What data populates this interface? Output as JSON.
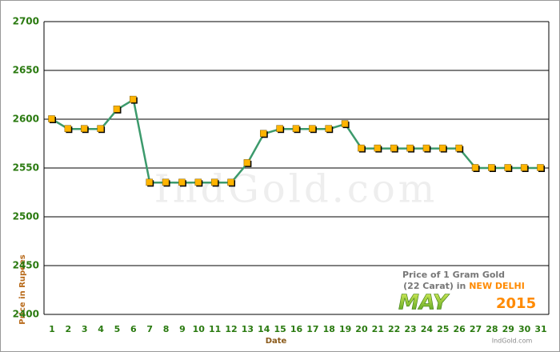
{
  "chart_data": {
    "type": "line",
    "categories": [
      "1",
      "2",
      "3",
      "4",
      "5",
      "6",
      "7",
      "8",
      "9",
      "10",
      "11",
      "12",
      "13",
      "14",
      "15",
      "16",
      "17",
      "18",
      "19",
      "20",
      "21",
      "22",
      "23",
      "24",
      "25",
      "26",
      "27",
      "28",
      "29",
      "30",
      "31"
    ],
    "values": [
      2600,
      2590,
      2590,
      2590,
      2610,
      2620,
      2535,
      2535,
      2535,
      2535,
      2535,
      2535,
      2555,
      2585,
      2590,
      2590,
      2590,
      2590,
      2595,
      2570,
      2570,
      2570,
      2570,
      2570,
      2570,
      2570,
      2550,
      2550,
      2550,
      2550,
      2550
    ],
    "color": "#3c9a6c",
    "marker_color": "#ffb400",
    "ylim": [
      2400,
      2700
    ],
    "yticks": [
      2400,
      2450,
      2500,
      2550,
      2600,
      2650,
      2700
    ],
    "grid": true,
    "x_label": "Date",
    "y_label": "Price in Rupees",
    "watermark": "IndGold.com",
    "annotation": {
      "line1": "Price of 1 Gram Gold",
      "line2": "(22 Carat) in",
      "city": "NEW DELHI",
      "month": "MAY",
      "year": "2015",
      "source": "IndGold.com"
    }
  }
}
